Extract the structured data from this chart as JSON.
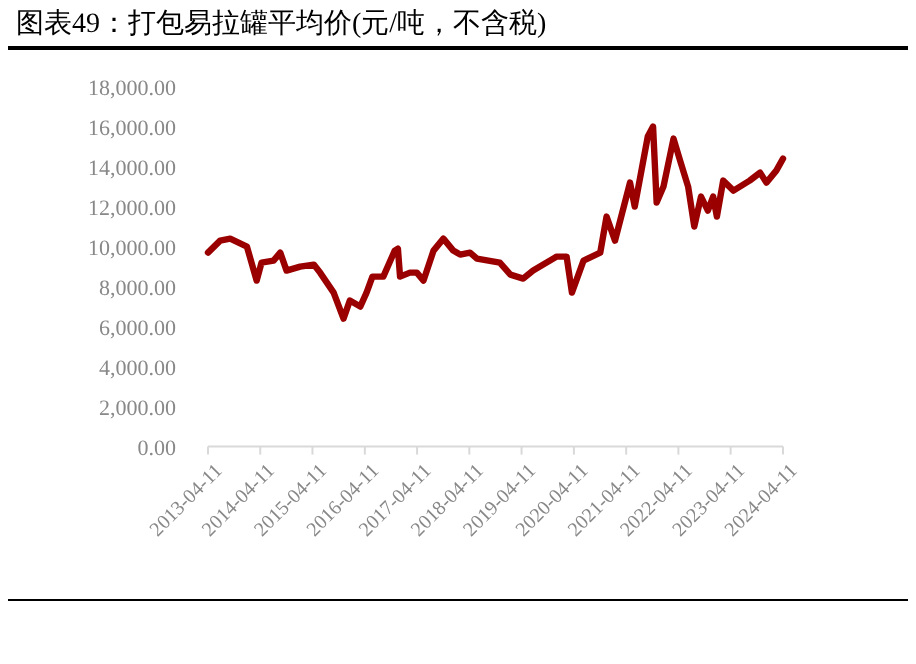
{
  "chart_data": {
    "type": "line",
    "title": "图表49：打包易拉罐平均价(元/吨，不含税)",
    "x": [
      "2013-04-11",
      "2013-07-05",
      "2013-09-13",
      "2014-01-08",
      "2014-03-17",
      "2014-04-20",
      "2014-07-13",
      "2014-08-29",
      "2014-10-12",
      "2015-01-15",
      "2015-04-20",
      "2015-06-03",
      "2015-09-06",
      "2015-11-14",
      "2015-12-28",
      "2016-03-10",
      "2016-04-23",
      "2016-06-03",
      "2016-08-18",
      "2016-11-06",
      "2016-11-28",
      "2016-12-13",
      "2017-02-20",
      "2017-04-09",
      "2017-05-26",
      "2017-08-04",
      "2017-10-12",
      "2017-12-20",
      "2018-02-06",
      "2018-04-16",
      "2018-06-03",
      "2018-11-10",
      "2019-01-23",
      "2019-04-23",
      "2019-07-01",
      "2019-12-13",
      "2020-02-20",
      "2020-03-28",
      "2020-06-17",
      "2020-10-12",
      "2020-11-25",
      "2021-01-23",
      "2021-05-08",
      "2021-06-10",
      "2021-09-09",
      "2021-10-16",
      "2021-11-10",
      "2021-12-28",
      "2022-03-08",
      "2022-04-23",
      "2022-06-18",
      "2022-07-31",
      "2022-09-16",
      "2022-11-03",
      "2022-12-10",
      "2023-01-05",
      "2023-02-18",
      "2023-05-01",
      "2023-08-22",
      "2023-11-03",
      "2023-12-17",
      "2024-02-24",
      "2024-04-11"
    ],
    "series": [
      {
        "color": "#9b0000",
        "values": [
          9700,
          10300,
          10400,
          10000,
          8300,
          9200,
          9300,
          9700,
          8800,
          9000,
          9100,
          8700,
          7700,
          6400,
          7300,
          7000,
          7700,
          8500,
          8500,
          9800,
          9900,
          8500,
          8700,
          8700,
          8300,
          9800,
          10400,
          9800,
          9600,
          9700,
          9400,
          9200,
          8600,
          8400,
          8800,
          9500,
          9500,
          7700,
          9300,
          9700,
          11500,
          10300,
          13200,
          12000,
          15500,
          16000,
          12200,
          13000,
          15400,
          14300,
          13000,
          11000,
          12500,
          11800,
          12500,
          11500,
          13300,
          12800,
          13300,
          13700,
          13200,
          13800,
          14400
        ]
      }
    ],
    "xlim": [
      "2013-04-11",
      "2024-04-11"
    ],
    "xticks": [
      "2013-04-11",
      "2014-04-11",
      "2015-04-11",
      "2016-04-11",
      "2017-04-11",
      "2018-04-11",
      "2019-04-11",
      "2020-04-11",
      "2021-04-11",
      "2022-04-11",
      "2023-04-11",
      "2024-04-11"
    ],
    "ylim": [
      0,
      18000
    ],
    "yticks": [
      {
        "value": 0,
        "label": "0.00"
      },
      {
        "value": 2000,
        "label": "2,000.00"
      },
      {
        "value": 4000,
        "label": "4,000.00"
      },
      {
        "value": 6000,
        "label": "6,000.00"
      },
      {
        "value": 8000,
        "label": "8,000.00"
      },
      {
        "value": 10000,
        "label": "10,000.00"
      },
      {
        "value": 12000,
        "label": "12,000.00"
      },
      {
        "value": 14000,
        "label": "14,000.00"
      },
      {
        "value": 16000,
        "label": "16,000.00"
      },
      {
        "value": 18000,
        "label": "18,000.00"
      }
    ],
    "marker": "none",
    "line_style": "solid"
  }
}
